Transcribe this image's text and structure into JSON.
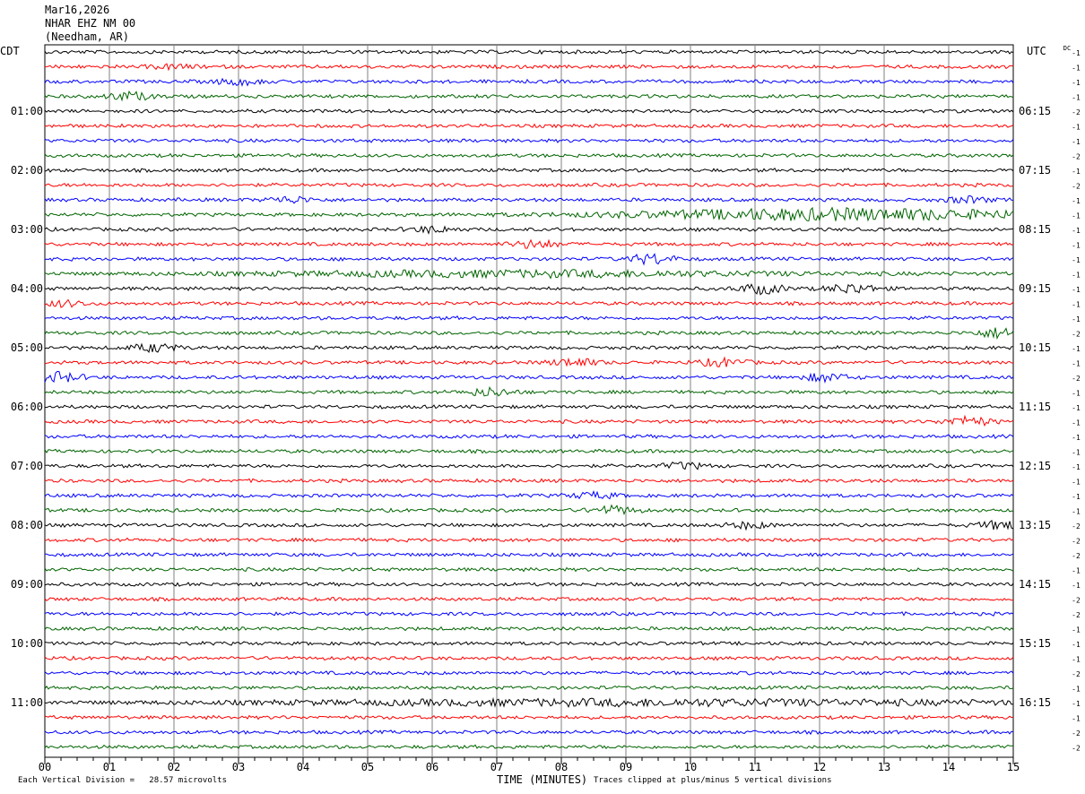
{
  "header": {
    "date": "Mar16,2026",
    "station": "NHAR EHZ NM 00",
    "location": "(Needham, AR)"
  },
  "labels": {
    "left_tz": "CDT",
    "right_tz": "UTC",
    "dc": "DC",
    "xlabel": "TIME (MINUTES)",
    "scale_note": "Each Vertical Division =   28.57 microvolts",
    "clip_note": "Traces clipped at plus/minus 5 vertical divisions"
  },
  "colors": {
    "trace_cycle": [
      "#000000",
      "#ff0000",
      "#0000ff",
      "#006400"
    ],
    "grid": "#808080"
  },
  "chart_data": {
    "type": "line",
    "title": "",
    "xlabel": "TIME (MINUTES)",
    "xlim": [
      0,
      15
    ],
    "x_ticks": [
      "00",
      "01",
      "02",
      "03",
      "04",
      "05",
      "06",
      "07",
      "08",
      "09",
      "10",
      "11",
      "12",
      "13",
      "14",
      "15"
    ],
    "left_hour_labels": [
      "01:00",
      "02:00",
      "03:00",
      "04:00",
      "05:00",
      "06:00",
      "07:00",
      "08:00",
      "09:00",
      "10:00",
      "11:00"
    ],
    "right_hour_labels": [
      "06:15",
      "07:15",
      "08:15",
      "09:15",
      "10:15",
      "11:15",
      "12:15",
      "13:15",
      "14:15",
      "15:15",
      "16:15"
    ],
    "trace_count": 48,
    "dc_offsets": [
      -1,
      -1,
      -1,
      -1,
      -2,
      -1,
      -1,
      -2,
      -1,
      -2,
      -1,
      -1,
      -1,
      -1,
      -1,
      -1,
      -1,
      -1,
      -1,
      -2,
      -1,
      -1,
      -2,
      -1,
      -1,
      -1,
      -1,
      -1,
      -1,
      -1,
      -1,
      -1,
      -2,
      -2,
      -2,
      -1,
      -1,
      -2,
      -2,
      -1,
      -1,
      -1,
      -2,
      -1,
      -1,
      -1,
      -2,
      -2
    ],
    "events": [
      {
        "trace": 1,
        "minute": 2.0,
        "amp": 2
      },
      {
        "trace": 2,
        "minute": 3.0,
        "amp": 3
      },
      {
        "trace": 3,
        "minute": 1.3,
        "amp": 4
      },
      {
        "trace": 10,
        "minute": 3.8,
        "amp": 3
      },
      {
        "trace": 10,
        "minute": 14.3,
        "amp": 3
      },
      {
        "trace": 11,
        "minute": 12.3,
        "amp": 6,
        "width": 3.2
      },
      {
        "trace": 12,
        "minute": 6.0,
        "amp": 3
      },
      {
        "trace": 13,
        "minute": 7.6,
        "amp": 4
      },
      {
        "trace": 14,
        "minute": 9.4,
        "amp": 5
      },
      {
        "trace": 15,
        "minute": 7.5,
        "amp": 3,
        "width": 4
      },
      {
        "trace": 16,
        "minute": 11.1,
        "amp": 5
      },
      {
        "trace": 16,
        "minute": 12.5,
        "amp": 5
      },
      {
        "trace": 17,
        "minute": 0.3,
        "amp": 3
      },
      {
        "trace": 19,
        "minute": 14.8,
        "amp": 5
      },
      {
        "trace": 20,
        "minute": 1.7,
        "amp": 4
      },
      {
        "trace": 21,
        "minute": 8.2,
        "amp": 4
      },
      {
        "trace": 21,
        "minute": 10.5,
        "amp": 4
      },
      {
        "trace": 22,
        "minute": 0.2,
        "amp": 5
      },
      {
        "trace": 22,
        "minute": 12.1,
        "amp": 4
      },
      {
        "trace": 23,
        "minute": 6.9,
        "amp": 4
      },
      {
        "trace": 25,
        "minute": 14.3,
        "amp": 5
      },
      {
        "trace": 28,
        "minute": 9.9,
        "amp": 3
      },
      {
        "trace": 30,
        "minute": 8.5,
        "amp": 3
      },
      {
        "trace": 31,
        "minute": 8.8,
        "amp": 4
      },
      {
        "trace": 32,
        "minute": 10.9,
        "amp": 3
      },
      {
        "trace": 32,
        "minute": 14.8,
        "amp": 4
      },
      {
        "trace": 44,
        "minute": 9.5,
        "amp": 3,
        "width": 6
      }
    ]
  }
}
